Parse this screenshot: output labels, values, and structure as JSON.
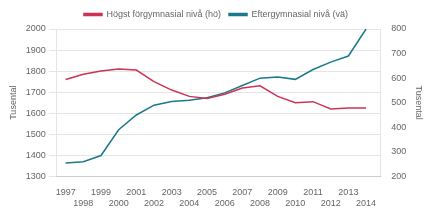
{
  "chart_data": {
    "type": "line",
    "ylabel": "Tusental",
    "y2label": "Tusental",
    "x": [
      1997,
      1998,
      1999,
      2000,
      2001,
      2002,
      2003,
      2004,
      2005,
      2006,
      2007,
      2008,
      2009,
      2010,
      2011,
      2012,
      2013,
      2014
    ],
    "series": [
      {
        "name": "Högst förgymnasial nivå (hö)",
        "color": "#cc3355",
        "values": [
          1760,
          1785,
          1800,
          1810,
          1805,
          1750,
          1710,
          1680,
          1670,
          1690,
          1720,
          1730,
          1680,
          1650,
          1655,
          1620,
          1625,
          1625
        ]
      },
      {
        "name": "Eftergymnasial nivå (vä)",
        "color": "#1a7a8a",
        "axis": "y2",
        "values": [
          255,
          260,
          285,
          390,
          450,
          490,
          505,
          510,
          520,
          540,
          570,
          600,
          605,
          595,
          635,
          665,
          690,
          800
        ]
      }
    ],
    "xlim": [
      1996.5,
      2014.8
    ],
    "xticks": [
      1997,
      1998,
      1999,
      2000,
      2001,
      2002,
      2003,
      2004,
      2005,
      2006,
      2007,
      2008,
      2009,
      2010,
      2011,
      2012,
      2013,
      2014
    ],
    "ylim": [
      1300,
      2000
    ],
    "yticks": [
      1300,
      1400,
      1500,
      1600,
      1700,
      1800,
      1900,
      2000
    ],
    "y2lim": [
      200,
      800
    ],
    "y2ticks": [
      200,
      300,
      400,
      500,
      600,
      700,
      800
    ],
    "grid": true,
    "legend": "top"
  }
}
